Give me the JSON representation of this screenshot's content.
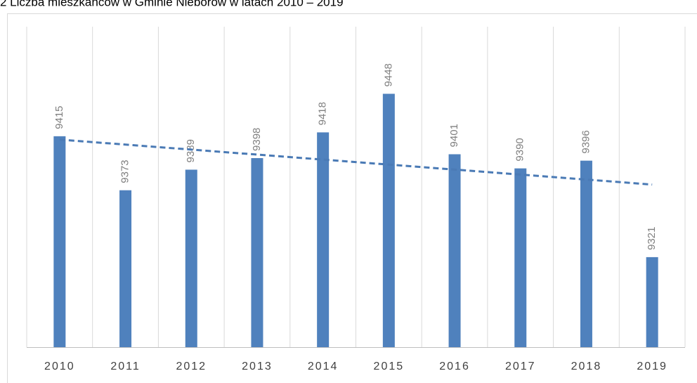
{
  "chart_data": {
    "type": "bar",
    "title": "2 Liczba mieszkańców w Gminie Nieborów w latach 2010 – 2019",
    "categories": [
      "2010",
      "2011",
      "2012",
      "2013",
      "2014",
      "2015",
      "2016",
      "2017",
      "2018",
      "2019"
    ],
    "values": [
      9415,
      9373,
      9389,
      9398,
      9418,
      9448,
      9401,
      9390,
      9396,
      9321
    ],
    "color": "#4f81bd",
    "ylim": [
      9251,
      9510
    ],
    "trendline": true,
    "trendline_color": "#4a7ab5"
  }
}
